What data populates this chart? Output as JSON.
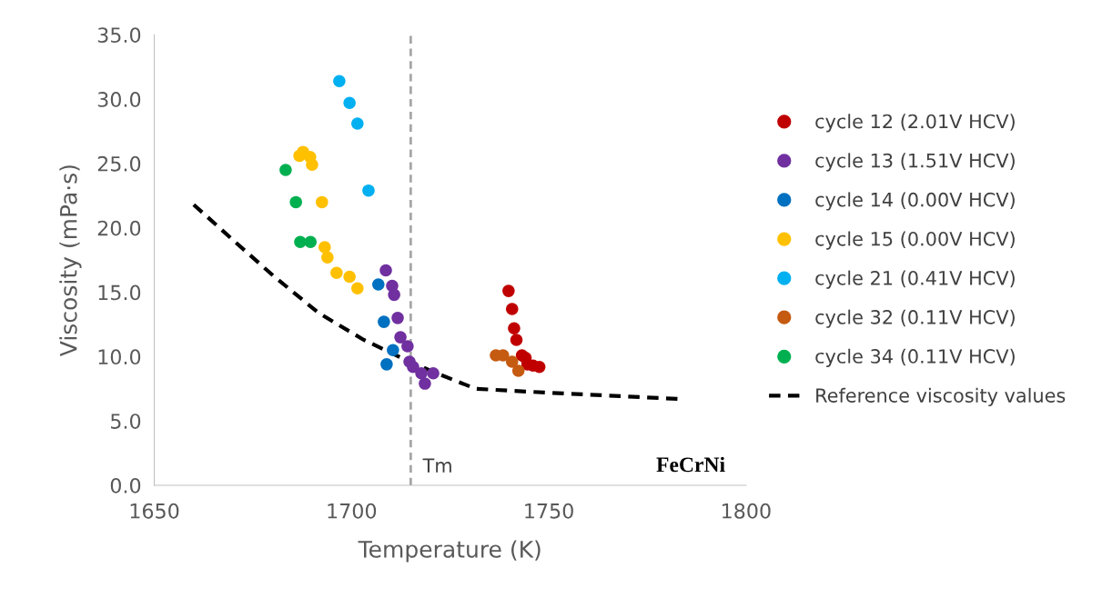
{
  "chart_data": {
    "type": "scatter",
    "xlabel": "Temperature (K)",
    "ylabel": "Viscosity (mPa·s)",
    "xlim": [
      1650,
      1800
    ],
    "xticks": [
      1650,
      1700,
      1750,
      1800
    ],
    "ylim": [
      0,
      35
    ],
    "yticks": [
      {
        "value": 0,
        "label": "0.0"
      },
      {
        "value": 5,
        "label": "5.0"
      },
      {
        "value": 10,
        "label": "10.0"
      },
      {
        "value": 15,
        "label": "15.0"
      },
      {
        "value": 20,
        "label": "20.0"
      },
      {
        "value": 25,
        "label": "25.0"
      },
      {
        "value": 30,
        "label": "30.0"
      },
      {
        "value": 35,
        "label": "35.0"
      }
    ],
    "grid": false,
    "legend": "right",
    "marker": "circle",
    "series": [
      {
        "name": "cycle 12 (2.01V HCV)",
        "color": "#c00000",
        "x": [
          1739.8,
          1740.7,
          1741.2,
          1741.8,
          1743.2,
          1744.1,
          1744.6,
          1746.0,
          1747.6
        ],
        "values": [
          15.1,
          13.7,
          12.2,
          11.3,
          10.1,
          9.9,
          9.4,
          9.3,
          9.2
        ]
      },
      {
        "name": "cycle 13 (1.51V HCV)",
        "color": "#7030a0",
        "x": [
          1708.7,
          1710.3,
          1710.8,
          1711.7,
          1712.4,
          1714.2,
          1714.7,
          1715.6,
          1717.7,
          1718.6,
          1720.7
        ],
        "values": [
          16.7,
          15.5,
          14.8,
          13.0,
          11.5,
          10.8,
          9.6,
          9.2,
          8.7,
          7.9,
          8.7
        ]
      },
      {
        "name": "cycle 14 (0.00V HCV)",
        "color": "#0070c0",
        "x": [
          1706.8,
          1708.2,
          1710.5,
          1708.9
        ],
        "values": [
          15.6,
          12.7,
          10.5,
          9.4
        ]
      },
      {
        "name": "cycle 15 (0.00V HCV)",
        "color": "#ffc000",
        "x": [
          1687.7,
          1686.8,
          1689.5,
          1690.0,
          1692.5,
          1693.2,
          1693.9,
          1696.2,
          1699.5,
          1701.5
        ],
        "values": [
          25.9,
          25.6,
          25.5,
          24.9,
          22.0,
          18.5,
          17.7,
          16.5,
          16.2,
          15.3
        ]
      },
      {
        "name": "cycle 21 (0.41V HCV)",
        "color": "#00b0f0",
        "x": [
          1696.9,
          1699.5,
          1701.5,
          1704.3
        ],
        "values": [
          31.4,
          29.7,
          28.1,
          22.9
        ]
      },
      {
        "name": "cycle 32 (0.11V HCV)",
        "color": "#c55a11",
        "x": [
          1736.6,
          1738.4,
          1740.7,
          1742.3
        ],
        "values": [
          10.1,
          10.1,
          9.6,
          8.9
        ]
      },
      {
        "name": "cycle 34 (0.11V HCV)",
        "color": "#00b050",
        "x": [
          1683.3,
          1685.9,
          1687.0,
          1689.6
        ],
        "values": [
          24.5,
          22.0,
          18.9,
          18.9
        ]
      },
      {
        "name": "Reference viscosity values",
        "type": "line",
        "line_style": "dashed",
        "marker": "none",
        "color": "#000000",
        "x": [
          1660.0,
          1670.9,
          1680.1,
          1691.6,
          1703.1,
          1714.7,
          1721.6,
          1731.5,
          1749.3,
          1783.4
        ],
        "values": [
          21.8,
          18.8,
          16.3,
          13.4,
          11.3,
          9.6,
          8.7,
          7.5,
          7.2,
          6.7
        ]
      }
    ],
    "ref_lines": [
      {
        "axis": "x",
        "value": 1715.0,
        "label": "Tm",
        "color": "#a6a6a6",
        "line_style": "dashed"
      }
    ],
    "annotations": [
      "FeCrNi"
    ]
  }
}
